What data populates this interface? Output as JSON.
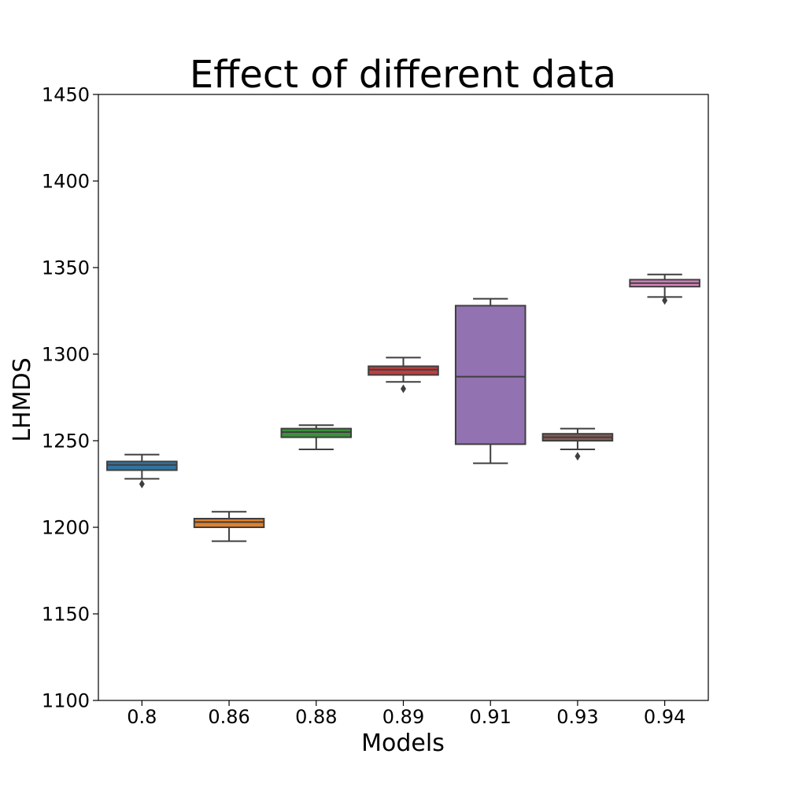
{
  "chart_data": {
    "type": "box",
    "title": "Effect of different data",
    "xlabel": "Models",
    "ylabel": "LHMDS",
    "ylim": [
      1100,
      1450
    ],
    "yticks": [
      1100,
      1150,
      1200,
      1250,
      1300,
      1350,
      1400,
      1450
    ],
    "grid": false,
    "categories": [
      "0.8",
      "0.86",
      "0.88",
      "0.89",
      "0.91",
      "0.93",
      "0.94"
    ],
    "boxes": [
      {
        "label": "0.8",
        "color": "#3274a1",
        "whisker_low": 1228,
        "q1": 1233,
        "median": 1236,
        "q3": 1238,
        "whisker_high": 1242,
        "outliers": [
          1225
        ]
      },
      {
        "label": "0.86",
        "color": "#e1812c",
        "whisker_low": 1192,
        "q1": 1200,
        "median": 1203,
        "q3": 1205,
        "whisker_high": 1209,
        "outliers": []
      },
      {
        "label": "0.88",
        "color": "#3a923a",
        "whisker_low": 1245,
        "q1": 1252,
        "median": 1255,
        "q3": 1257,
        "whisker_high": 1259,
        "outliers": []
      },
      {
        "label": "0.89",
        "color": "#c03d3e",
        "whisker_low": 1284,
        "q1": 1288,
        "median": 1291,
        "q3": 1293,
        "whisker_high": 1298,
        "outliers": [
          1280
        ]
      },
      {
        "label": "0.91",
        "color": "#9372b2",
        "whisker_low": 1237,
        "q1": 1248,
        "median": 1287,
        "q3": 1328,
        "whisker_high": 1332,
        "outliers": []
      },
      {
        "label": "0.93",
        "color": "#845b53",
        "whisker_low": 1245,
        "q1": 1250,
        "median": 1252,
        "q3": 1254,
        "whisker_high": 1257,
        "outliers": [
          1241
        ]
      },
      {
        "label": "0.94",
        "color": "#d684bd",
        "whisker_low": 1333,
        "q1": 1339,
        "median": 1341,
        "q3": 1343,
        "whisker_high": 1346,
        "outliers": [
          1331
        ]
      }
    ]
  }
}
